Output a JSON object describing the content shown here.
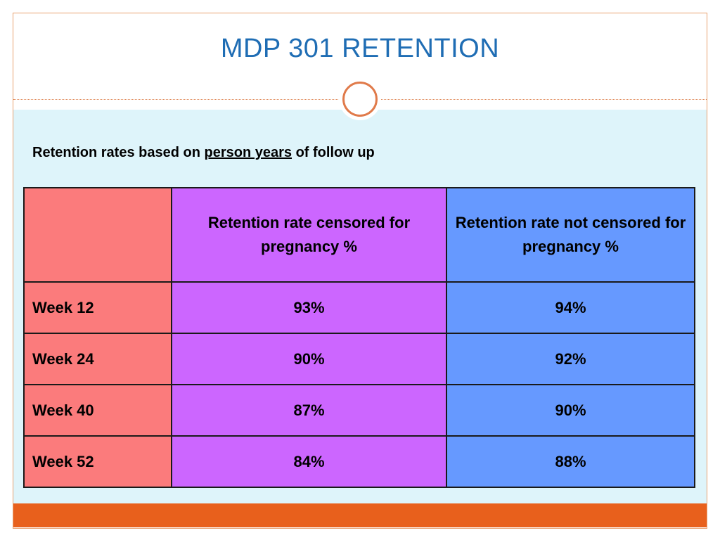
{
  "slide": {
    "title": "MDP 301 RETENTION",
    "subtitle_before": "Retention rates based on ",
    "subtitle_link": "person years",
    "subtitle_after": " of follow up"
  },
  "table": {
    "headers": [
      "",
      "Retention rate censored for pregnancy %",
      "Retention rate not censored for pregnancy %"
    ],
    "rows": [
      {
        "label": "Week 12",
        "censored": "93%",
        "not_censored": "94%"
      },
      {
        "label": "Week 24",
        "censored": "90%",
        "not_censored": "92%"
      },
      {
        "label": "Week 40",
        "censored": "87%",
        "not_censored": "90%"
      },
      {
        "label": "Week 52",
        "censored": "84%",
        "not_censored": "88%"
      }
    ]
  },
  "colors": {
    "title": "#1f6db4",
    "content_background": "#def4fa",
    "label_column": "#fb7b7c",
    "censored_column": "#cc66ff",
    "not_censored_column": "#6699ff",
    "accent_bar": "#e8601c"
  }
}
